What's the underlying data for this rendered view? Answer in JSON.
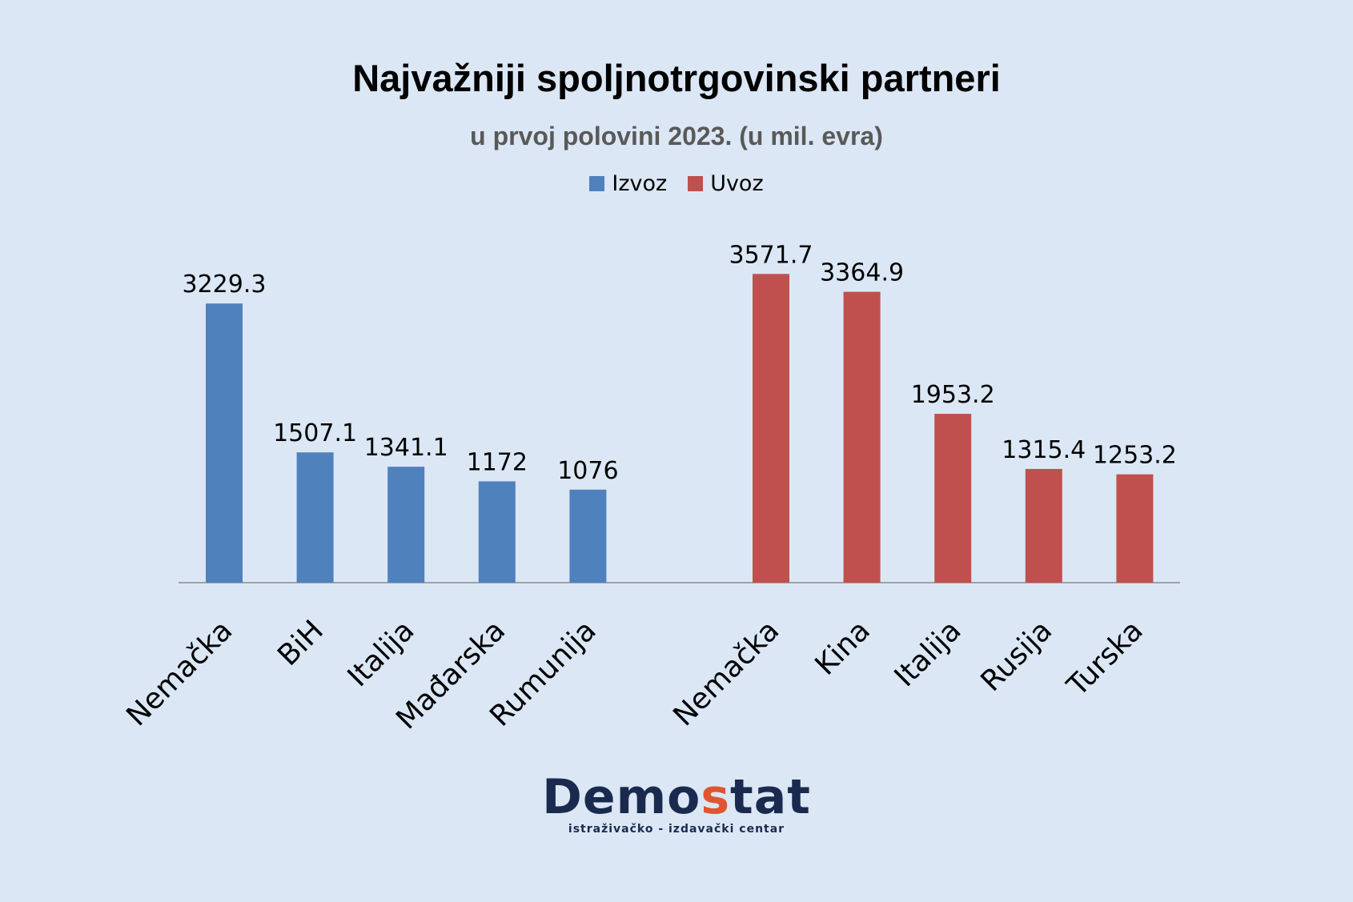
{
  "chart_data": {
    "type": "bar",
    "title": "Najvažniji spoljnotrgovinski partneri",
    "subtitle": "u prvoj polovini 2023. (u mil. evra)",
    "legend": "top-center",
    "grid": false,
    "ylim": [
      0,
      4000
    ],
    "colors": {
      "Izvoz": "#4f81bd",
      "Uvoz": "#c0504d"
    },
    "series": [
      {
        "name": "Izvoz",
        "categories": [
          "Nemačka",
          "BiH",
          "Italija",
          "Mađarska",
          "Rumunija"
        ],
        "values": [
          3229.3,
          1507.1,
          1341.1,
          1172,
          1076
        ]
      },
      {
        "name": "Uvoz",
        "categories": [
          "Nemačka",
          "Kina",
          "Italija",
          "Rusija",
          "Turska"
        ],
        "values": [
          3571.7,
          3364.9,
          1953.2,
          1315.4,
          1253.2
        ]
      }
    ]
  },
  "logo": {
    "name_part1": "Demo",
    "name_accent": "s",
    "name_part2": "tat",
    "tagline": "istraživačko - izdavački centar"
  }
}
